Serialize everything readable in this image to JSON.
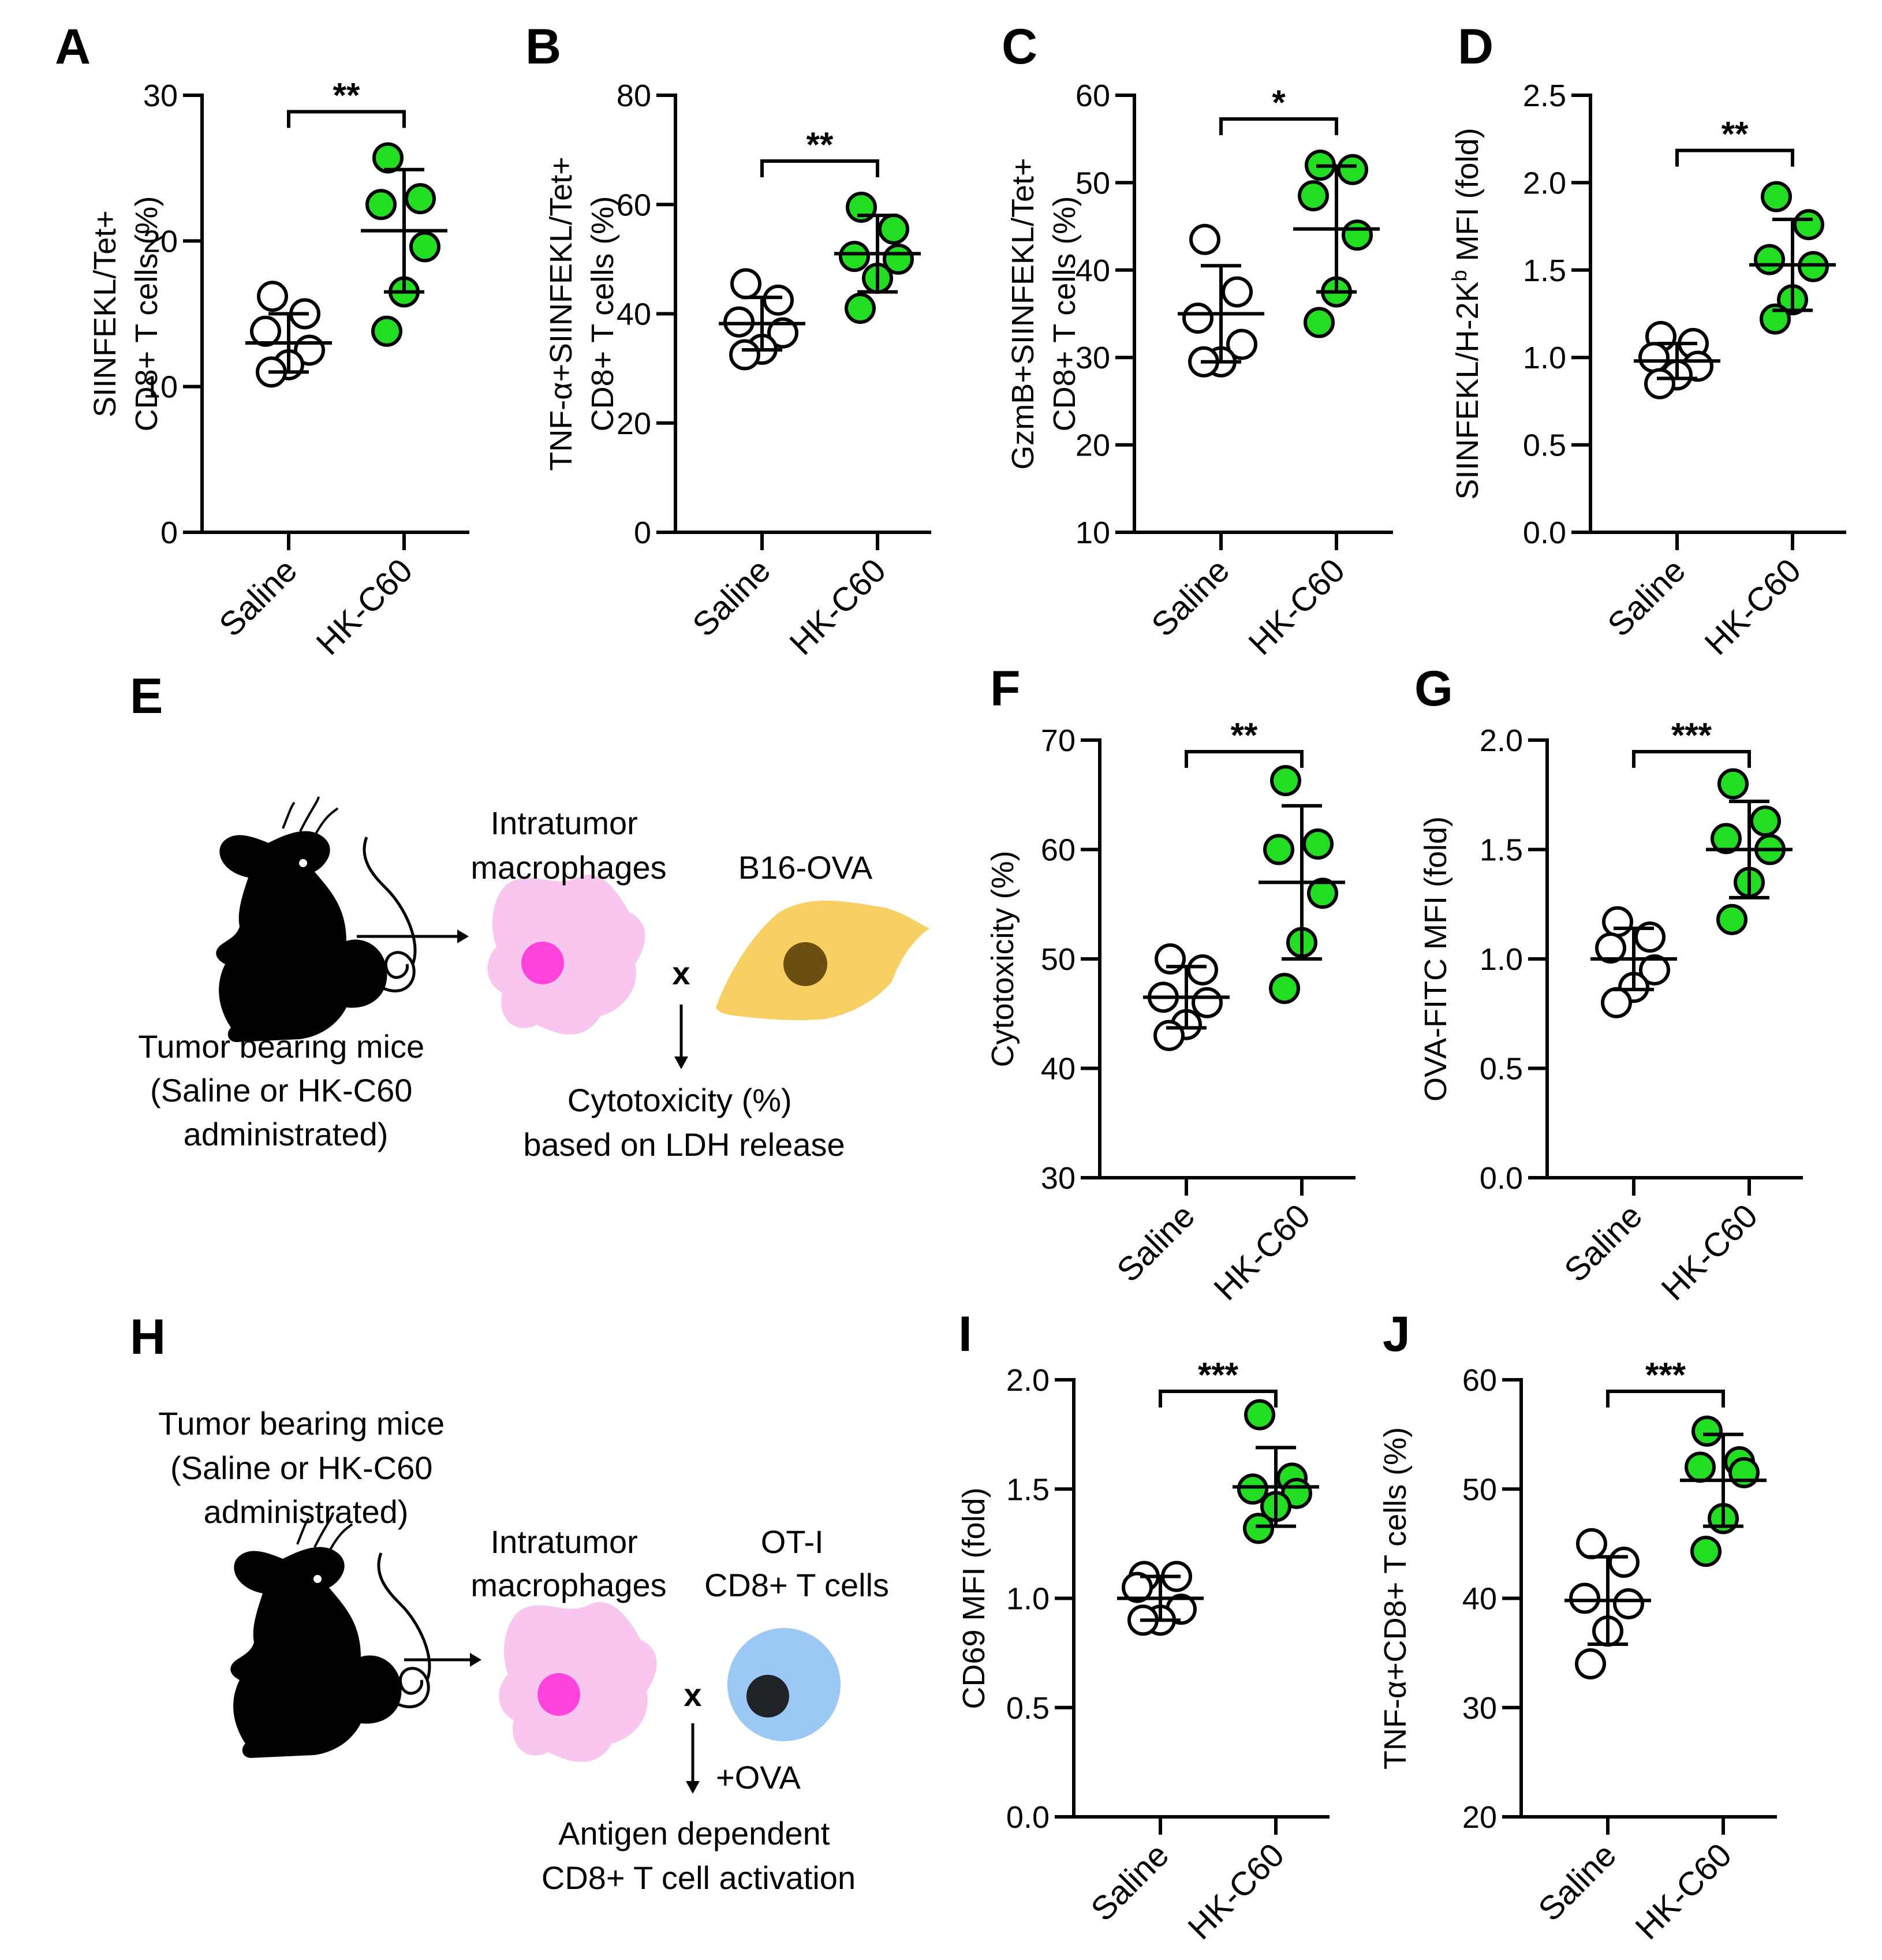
{
  "colors": {
    "saline_fill": "#ffffff",
    "hk_fill": "#22dd22",
    "macrophage": "#f9c6f0",
    "macrophage_nucleus": "#ff44dd",
    "b16_cell": "#f7cf62",
    "b16_nucleus": "#6b4e10",
    "tcell": "#9cc8f5",
    "tcell_nucleus": "#1f2328"
  },
  "chart_data": [
    {
      "panel": "A",
      "type": "scatter",
      "ylabel_lines": [
        "SIINFEKL/Tet+",
        "CD8+ T cells (%)"
      ],
      "ylim": [
        0,
        30
      ],
      "yticks": [
        "0",
        "10",
        "20",
        "30"
      ],
      "categories": [
        "Saline",
        "HK-C60"
      ],
      "significance": "**",
      "series": [
        {
          "name": "Saline",
          "values": [
            16.2,
            15.0,
            13.8,
            12.5,
            11.5,
            11.0
          ],
          "mean": 13.0,
          "sd": 2.0
        },
        {
          "name": "HK-C60",
          "values": [
            25.7,
            22.9,
            22.5,
            19.6,
            16.5,
            13.8
          ],
          "mean": 20.7,
          "sd": 4.2
        }
      ]
    },
    {
      "panel": "B",
      "type": "scatter",
      "ylabel_lines": [
        "TNF-α+SIINFEKL/Tet+",
        "CD8+ T cells (%)"
      ],
      "ylim": [
        0,
        80
      ],
      "yticks": [
        "0",
        "20",
        "40",
        "60",
        "80"
      ],
      "categories": [
        "Saline",
        "HK-C60"
      ],
      "significance": "**",
      "series": [
        {
          "name": "Saline",
          "values": [
            45.5,
            42.5,
            38.5,
            36.5,
            33.5,
            32.5
          ],
          "mean": 38.2,
          "sd": 4.8
        },
        {
          "name": "HK-C60",
          "values": [
            59.5,
            55.5,
            50.5,
            50.0,
            46.5,
            41.0
          ],
          "mean": 51.0,
          "sd": 7.0
        }
      ]
    },
    {
      "panel": "C",
      "type": "scatter",
      "ylabel_lines": [
        "GzmB+SIINFEKL/Tet+",
        "CD8+ T cells (%)"
      ],
      "ylim": [
        10,
        60
      ],
      "yticks": [
        "10",
        "20",
        "30",
        "40",
        "50",
        "60"
      ],
      "categories": [
        "Saline",
        "HK-C60"
      ],
      "significance": "*",
      "series": [
        {
          "name": "Saline",
          "values": [
            43.5,
            37.5,
            34.5,
            31.5,
            29.5,
            29.5
          ],
          "mean": 35.0,
          "sd": 5.5
        },
        {
          "name": "HK-C60",
          "values": [
            52.0,
            51.5,
            48.5,
            44.0,
            37.5,
            34.0
          ],
          "mean": 44.7,
          "sd": 7.2
        }
      ]
    },
    {
      "panel": "D",
      "type": "scatter",
      "ylabel_lines": [
        "SIINFEKL/H-2K",
        "b",
        " MFI (fold)"
      ],
      "ylim": [
        0,
        2.5
      ],
      "yticks": [
        "0.0",
        "0.5",
        "1.0",
        "1.5",
        "2.0",
        "2.5"
      ],
      "categories": [
        "Saline",
        "HK-C60"
      ],
      "significance": "**",
      "series": [
        {
          "name": "Saline",
          "values": [
            1.12,
            1.08,
            1.0,
            0.95,
            0.9,
            0.85
          ],
          "mean": 0.98,
          "sd": 0.1
        },
        {
          "name": "HK-C60",
          "values": [
            1.92,
            1.76,
            1.56,
            1.52,
            1.33,
            1.22
          ],
          "mean": 1.53,
          "sd": 0.26
        }
      ]
    },
    {
      "panel": "F",
      "type": "scatter",
      "ylabel_lines": [
        "Cytotoxicity (%)"
      ],
      "ylim": [
        30,
        70
      ],
      "yticks": [
        "30",
        "40",
        "50",
        "60",
        "70"
      ],
      "categories": [
        "Saline",
        "HK-C60"
      ],
      "significance": "**",
      "series": [
        {
          "name": "Saline",
          "values": [
            50.0,
            49.0,
            46.5,
            46.0,
            44.0,
            43.0
          ],
          "mean": 46.5,
          "sd": 2.8
        },
        {
          "name": "HK-C60",
          "values": [
            66.3,
            60.5,
            60.0,
            56.0,
            51.5,
            47.3
          ],
          "mean": 57.0,
          "sd": 7.0
        }
      ]
    },
    {
      "panel": "G",
      "type": "scatter",
      "ylabel_lines": [
        "OVA-FITC MFI (fold)"
      ],
      "ylim": [
        0,
        2.0
      ],
      "yticks": [
        "0.0",
        "0.5",
        "1.0",
        "1.5",
        "2.0"
      ],
      "categories": [
        "Saline",
        "HK-C60"
      ],
      "significance": "***",
      "series": [
        {
          "name": "Saline",
          "values": [
            1.17,
            1.1,
            1.05,
            0.95,
            0.87,
            0.8
          ],
          "mean": 1.0,
          "sd": 0.14
        },
        {
          "name": "HK-C60",
          "values": [
            1.8,
            1.63,
            1.55,
            1.5,
            1.35,
            1.18
          ],
          "mean": 1.5,
          "sd": 0.22
        }
      ]
    },
    {
      "panel": "I",
      "type": "scatter",
      "ylabel_lines": [
        "CD69 MFI (fold)"
      ],
      "ylim": [
        0,
        2.0
      ],
      "yticks": [
        "0.0",
        "0.5",
        "1.0",
        "1.5",
        "2.0"
      ],
      "categories": [
        "Saline",
        "HK-C60"
      ],
      "significance": "***",
      "series": [
        {
          "name": "Saline",
          "values": [
            1.1,
            1.1,
            1.05,
            0.95,
            0.9,
            0.9
          ],
          "mean": 1.0,
          "sd": 0.1
        },
        {
          "name": "HK-C60",
          "values": [
            1.84,
            1.55,
            1.5,
            1.48,
            1.42,
            1.32
          ],
          "mean": 1.51,
          "sd": 0.18
        }
      ]
    },
    {
      "panel": "J",
      "type": "scatter",
      "ylabel_lines": [
        "TNF-α+CD8+ T cells (%)"
      ],
      "ylim": [
        20,
        60
      ],
      "yticks": [
        "20",
        "30",
        "40",
        "50",
        "60"
      ],
      "categories": [
        "Saline",
        "HK-C60"
      ],
      "significance": "***",
      "series": [
        {
          "name": "Saline",
          "values": [
            45.0,
            43.3,
            40.0,
            39.5,
            37.0,
            34.0
          ],
          "mean": 39.8,
          "sd": 4.0
        },
        {
          "name": "HK-C60",
          "values": [
            55.3,
            52.5,
            52.0,
            51.5,
            47.3,
            44.3
          ],
          "mean": 50.8,
          "sd": 4.2
        }
      ]
    }
  ],
  "diagram_e": {
    "letter": "E",
    "mice_label": [
      "Tumor bearing mice",
      "(Saline or HK-C60",
      "administrated)"
    ],
    "macrophage_label": [
      "Intratumor",
      "macrophages"
    ],
    "target_label": [
      "B16-OVA"
    ],
    "cross": "x",
    "result_label": [
      "Cytotoxicity (%)",
      "based on LDH release"
    ]
  },
  "diagram_h": {
    "letter": "H",
    "mice_label": [
      "Tumor bearing mice",
      "(Saline or HK-C60",
      "administrated)"
    ],
    "macrophage_label": [
      "Intratumor",
      "macrophages"
    ],
    "target_label": [
      "OT-I",
      "CD8+ T cells"
    ],
    "cross": "x",
    "stimulus": "+OVA",
    "result_label": [
      "Antigen dependent",
      "CD8+ T cell activation"
    ]
  }
}
